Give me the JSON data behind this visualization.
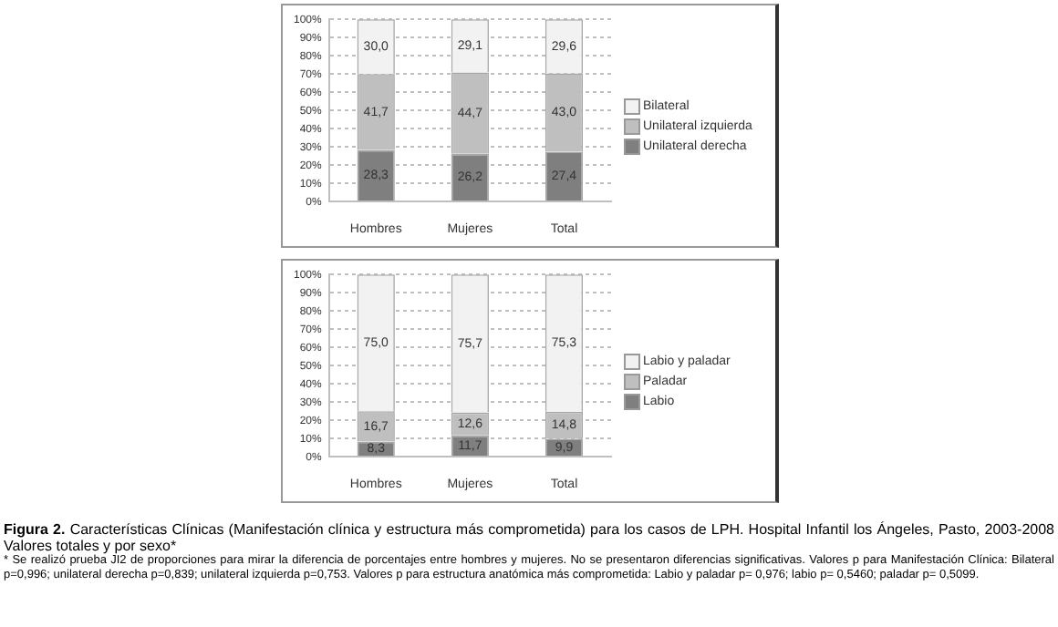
{
  "chart_data": [
    {
      "type": "bar",
      "stacked": true,
      "categories": [
        "Hombres",
        "Mujeres",
        "Total"
      ],
      "series": [
        {
          "name": "Unilateral derecha",
          "color": "#7f7f7f",
          "values": [
            28.3,
            26.2,
            27.4
          ],
          "value_labels": [
            "28,3",
            "26,2",
            "27,4"
          ]
        },
        {
          "name": "Unilateral izquierda",
          "color": "#bfbfbf",
          "values": [
            41.7,
            44.7,
            43.0
          ],
          "value_labels": [
            "41,7",
            "44,7",
            "43,0"
          ]
        },
        {
          "name": "Bilateral",
          "color": "#f2f2f2",
          "values": [
            30.0,
            29.1,
            29.6
          ],
          "value_labels": [
            "30,0",
            "29,1",
            "29,6"
          ]
        }
      ],
      "ylim": [
        0,
        100
      ],
      "yticks": [
        {
          "value": 0,
          "label": "0%"
        },
        {
          "value": 10,
          "label": "10%"
        },
        {
          "value": 20,
          "label": "20%"
        },
        {
          "value": 30,
          "label": "30%"
        },
        {
          "value": 40,
          "label": "40%"
        },
        {
          "value": 50,
          "label": "50%"
        },
        {
          "value": 60,
          "label": "60%"
        },
        {
          "value": 70,
          "label": "70%"
        },
        {
          "value": 80,
          "label": "80%"
        },
        {
          "value": 90,
          "label": "90%"
        },
        {
          "value": 100,
          "label": "100%"
        }
      ],
      "grid": "y",
      "legend": "right"
    },
    {
      "type": "bar",
      "stacked": true,
      "categories": [
        "Hombres",
        "Mujeres",
        "Total"
      ],
      "series": [
        {
          "name": "Labio",
          "color": "#7f7f7f",
          "values": [
            8.3,
            11.7,
            9.9
          ],
          "value_labels": [
            "8,3",
            "11,7",
            "9,9"
          ]
        },
        {
          "name": "Paladar",
          "color": "#bfbfbf",
          "values": [
            16.7,
            12.6,
            14.8
          ],
          "value_labels": [
            "16,7",
            "12,6",
            "14,8"
          ]
        },
        {
          "name": "Labio y paladar",
          "color": "#f2f2f2",
          "values": [
            75.0,
            75.7,
            75.3
          ],
          "value_labels": [
            "75,0",
            "75,7",
            "75,3"
          ]
        }
      ],
      "ylim": [
        0,
        100
      ],
      "yticks": [
        {
          "value": 0,
          "label": "0%"
        },
        {
          "value": 10,
          "label": "10%"
        },
        {
          "value": 20,
          "label": "20%"
        },
        {
          "value": 30,
          "label": "30%"
        },
        {
          "value": 40,
          "label": "40%"
        },
        {
          "value": 50,
          "label": "50%"
        },
        {
          "value": 60,
          "label": "60%"
        },
        {
          "value": 70,
          "label": "70%"
        },
        {
          "value": 80,
          "label": "80%"
        },
        {
          "value": 90,
          "label": "90%"
        },
        {
          "value": 100,
          "label": "100%"
        }
      ],
      "grid": "y",
      "legend": "right",
      "annotations": [
        "Figura 2.",
        "Características Clínicas (Manifestación clínica y estructura más comprometida) para los casos de LPH. Hospital Infantil los Ángeles, Pasto, 2003-2008 Valores totales y por sexo*",
        "* Se realizó prueba JI2 de proporciones para mirar la diferencia de porcentajes entre hombres y mujeres. No se presentaron diferencias significativas. Valores p para Manifestación Clínica: Bilateral p=0,996; unilateral derecha p=0,839; unilateral izquierda p=0,753. Valores p para estructura anatómica más comprometida: Labio y paladar p= 0,976; labio p= 0,5460; paladar p= 0,5099."
      ]
    }
  ]
}
